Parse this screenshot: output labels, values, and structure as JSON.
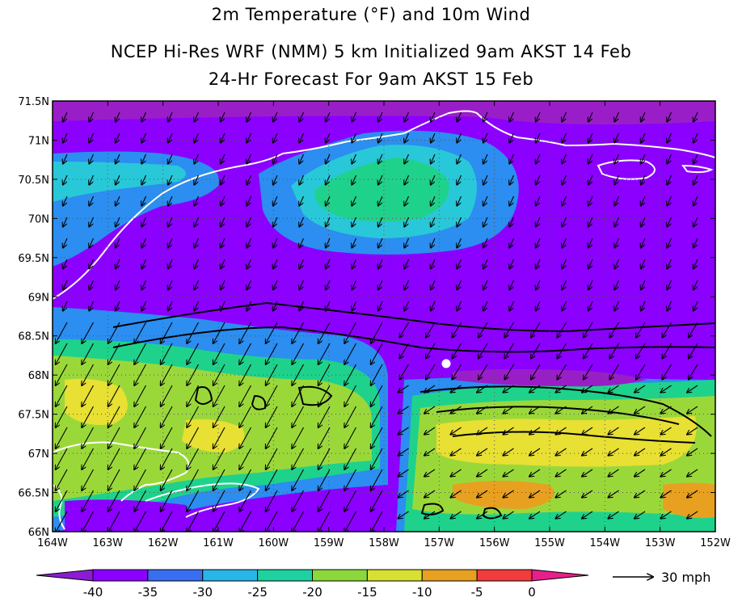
{
  "title": "2m Temperature (°F) and 10m Wind",
  "subtitle": "NCEP Hi-Res WRF (NMM) 5 km Initialized 9am AKST 14 Feb",
  "forecast": "24-Hr Forecast For 9am AKST 15 Feb",
  "map": {
    "lon_range": [
      -164,
      -152
    ],
    "lat_range": [
      66,
      71.5
    ],
    "lat_ticks": [
      "66N",
      "66.5N",
      "67N",
      "67.5N",
      "68N",
      "68.5N",
      "69N",
      "69.5N",
      "70N",
      "70.5N",
      "71N",
      "71.5N"
    ],
    "lon_ticks": [
      "164W",
      "163W",
      "162W",
      "161W",
      "160W",
      "159W",
      "158W",
      "157W",
      "156W",
      "155W",
      "154W",
      "153W",
      "152W"
    ],
    "grid": "dotted",
    "colors": {
      "below_-40": "#9a1ec8",
      "-40_-35": "#8b00ff",
      "-35_-30": "#2b8ef0",
      "-30_-25": "#28c8d8",
      "-25_-20": "#1ed28c",
      "-20_-15": "#9ad83a",
      "-15_-10": "#e8e032",
      "-10_-5": "#e8a020",
      "coast": "#ffffff",
      "terrain_contour": "#000000"
    },
    "station_marker": "white-dot"
  },
  "colorbar": {
    "labels": [
      "-40",
      "-35",
      "-30",
      "-25",
      "-20",
      "-15",
      "-10",
      "-5",
      "0"
    ],
    "colors": [
      "#8b1cd4",
      "#8b00ff",
      "#3a6ef0",
      "#28b6e8",
      "#1ed2a0",
      "#8cd83a",
      "#d8e032",
      "#e8a020",
      "#f03c3c",
      "#e81e8c"
    ]
  },
  "wind_reference": {
    "label": "30 mph",
    "icon": "arrow-right-icon"
  }
}
